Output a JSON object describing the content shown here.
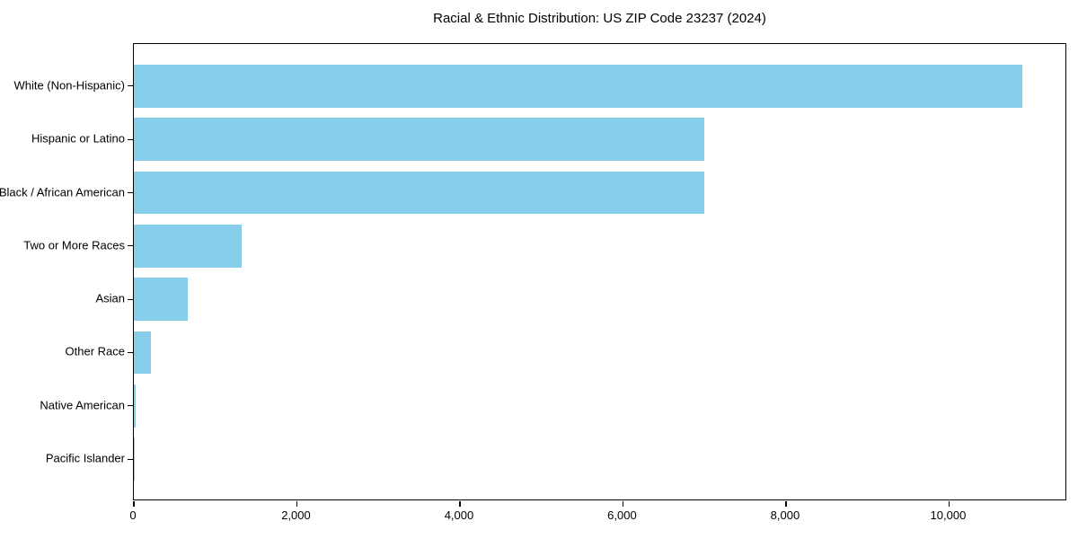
{
  "chart_data": {
    "type": "bar",
    "orientation": "horizontal",
    "title": "Racial & Ethnic Distribution: US ZIP Code 23237 (2024)",
    "categories": [
      "White (Non-Hispanic)",
      "Hispanic or Latino",
      "Black / African American",
      "Two or More Races",
      "Asian",
      "Other Race",
      "Native American",
      "Pacific Islander"
    ],
    "values": [
      10900,
      7000,
      7000,
      1320,
      660,
      205,
      20,
      10
    ],
    "xlabel": "",
    "ylabel": "",
    "xlim": [
      0,
      11450
    ],
    "xticks": [
      {
        "value": 0,
        "label": "0"
      },
      {
        "value": 2000,
        "label": "2,000"
      },
      {
        "value": 4000,
        "label": "4,000"
      },
      {
        "value": 6000,
        "label": "6,000"
      },
      {
        "value": 8000,
        "label": "8,000"
      },
      {
        "value": 10000,
        "label": "10,000"
      }
    ],
    "bar_color": "#87CEEB",
    "background_color": "#ffffff",
    "spine_color": "#000000",
    "grid": false,
    "legend": null
  }
}
